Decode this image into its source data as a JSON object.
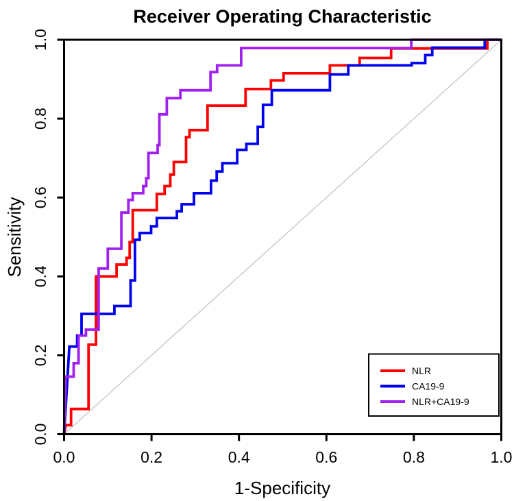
{
  "title": "Receiver Operating Characteristic",
  "axes": {
    "xlabel": "1-Specificity",
    "ylabel": "Sensitivity"
  },
  "legend": {
    "items": [
      {
        "label": "NLR",
        "color": "#FF0000"
      },
      {
        "label": "CA19-9",
        "color": "#0000EE"
      },
      {
        "label": "NLR+CA19-9",
        "color": "#A020F0"
      }
    ]
  },
  "colors": {
    "axis": "#000000",
    "reference_line": "#BFBFBF",
    "background": "#FFFFFF"
  },
  "chart_data": {
    "type": "line",
    "subtype": "roc-step-curves",
    "title": "Receiver Operating Characteristic",
    "xlabel": "1-Specificity",
    "ylabel": "Sensitivity",
    "xlim": [
      0,
      1
    ],
    "ylim": [
      0,
      1
    ],
    "grid": false,
    "x_ticks": [
      0.0,
      0.2,
      0.4,
      0.6,
      0.8,
      1.0
    ],
    "y_ticks": [
      0.0,
      0.2,
      0.4,
      0.6,
      0.8,
      1.0
    ],
    "x_tick_labels": [
      "0.0",
      "0.2",
      "0.4",
      "0.6",
      "0.8",
      "1.0"
    ],
    "y_tick_labels": [
      "0.0",
      "0.2",
      "0.4",
      "0.6",
      "0.8",
      "1.0"
    ],
    "legend_position": "bottom-right",
    "reference_line": {
      "from": [
        0,
        0
      ],
      "to": [
        1,
        1
      ],
      "color": "#BFBFBF"
    },
    "series": [
      {
        "name": "NLR",
        "color": "#FF0000",
        "points": [
          [
            0,
            0
          ],
          [
            0.004,
            0.023
          ],
          [
            0.016,
            0.023
          ],
          [
            0.016,
            0.064
          ],
          [
            0.056,
            0.064
          ],
          [
            0.056,
            0.227
          ],
          [
            0.073,
            0.227
          ],
          [
            0.073,
            0.4
          ],
          [
            0.12,
            0.4
          ],
          [
            0.12,
            0.43
          ],
          [
            0.143,
            0.43
          ],
          [
            0.143,
            0.447
          ],
          [
            0.15,
            0.447
          ],
          [
            0.15,
            0.487
          ],
          [
            0.157,
            0.487
          ],
          [
            0.157,
            0.568
          ],
          [
            0.212,
            0.568
          ],
          [
            0.212,
            0.609
          ],
          [
            0.23,
            0.609
          ],
          [
            0.23,
            0.629
          ],
          [
            0.243,
            0.629
          ],
          [
            0.243,
            0.658
          ],
          [
            0.251,
            0.658
          ],
          [
            0.251,
            0.69
          ],
          [
            0.279,
            0.69
          ],
          [
            0.279,
            0.753
          ],
          [
            0.287,
            0.753
          ],
          [
            0.287,
            0.771
          ],
          [
            0.328,
            0.771
          ],
          [
            0.328,
            0.833
          ],
          [
            0.415,
            0.833
          ],
          [
            0.415,
            0.875
          ],
          [
            0.473,
            0.875
          ],
          [
            0.473,
            0.897
          ],
          [
            0.502,
            0.897
          ],
          [
            0.502,
            0.915
          ],
          [
            0.608,
            0.915
          ],
          [
            0.608,
            0.935
          ],
          [
            0.676,
            0.935
          ],
          [
            0.676,
            0.954
          ],
          [
            0.748,
            0.954
          ],
          [
            0.748,
            0.978
          ],
          [
            0.968,
            0.978
          ],
          [
            0.968,
            1
          ],
          [
            1,
            1
          ]
        ]
      },
      {
        "name": "CA19-9",
        "color": "#0000EE",
        "points": [
          [
            0,
            0
          ],
          [
            0.012,
            0.222
          ],
          [
            0.03,
            0.222
          ],
          [
            0.03,
            0.25
          ],
          [
            0.04,
            0.25
          ],
          [
            0.04,
            0.305
          ],
          [
            0.115,
            0.305
          ],
          [
            0.115,
            0.325
          ],
          [
            0.152,
            0.325
          ],
          [
            0.152,
            0.39
          ],
          [
            0.162,
            0.39
          ],
          [
            0.162,
            0.493
          ],
          [
            0.173,
            0.493
          ],
          [
            0.173,
            0.51
          ],
          [
            0.199,
            0.51
          ],
          [
            0.199,
            0.527
          ],
          [
            0.212,
            0.527
          ],
          [
            0.212,
            0.548
          ],
          [
            0.258,
            0.548
          ],
          [
            0.258,
            0.565
          ],
          [
            0.269,
            0.565
          ],
          [
            0.269,
            0.583
          ],
          [
            0.297,
            0.583
          ],
          [
            0.297,
            0.611
          ],
          [
            0.336,
            0.611
          ],
          [
            0.336,
            0.643
          ],
          [
            0.349,
            0.643
          ],
          [
            0.349,
            0.666
          ],
          [
            0.362,
            0.666
          ],
          [
            0.362,
            0.687
          ],
          [
            0.396,
            0.687
          ],
          [
            0.396,
            0.721
          ],
          [
            0.417,
            0.721
          ],
          [
            0.417,
            0.736
          ],
          [
            0.443,
            0.736
          ],
          [
            0.443,
            0.779
          ],
          [
            0.455,
            0.779
          ],
          [
            0.455,
            0.835
          ],
          [
            0.475,
            0.835
          ],
          [
            0.475,
            0.872
          ],
          [
            0.608,
            0.872
          ],
          [
            0.608,
            0.912
          ],
          [
            0.65,
            0.912
          ],
          [
            0.65,
            0.935
          ],
          [
            0.795,
            0.935
          ],
          [
            0.795,
            0.941
          ],
          [
            0.826,
            0.941
          ],
          [
            0.826,
            0.961
          ],
          [
            0.842,
            0.961
          ],
          [
            0.842,
            0.98
          ],
          [
            0.962,
            0.98
          ],
          [
            0.962,
            1
          ],
          [
            1,
            1
          ]
        ]
      },
      {
        "name": "NLR+CA19-9",
        "color": "#A020F0",
        "points": [
          [
            0,
            0
          ],
          [
            0.004,
            0.146
          ],
          [
            0.022,
            0.146
          ],
          [
            0.022,
            0.18
          ],
          [
            0.033,
            0.18
          ],
          [
            0.033,
            0.25
          ],
          [
            0.05,
            0.25
          ],
          [
            0.05,
            0.265
          ],
          [
            0.079,
            0.265
          ],
          [
            0.079,
            0.42
          ],
          [
            0.1,
            0.42
          ],
          [
            0.1,
            0.47
          ],
          [
            0.131,
            0.47
          ],
          [
            0.131,
            0.562
          ],
          [
            0.147,
            0.562
          ],
          [
            0.147,
            0.594
          ],
          [
            0.157,
            0.594
          ],
          [
            0.157,
            0.611
          ],
          [
            0.181,
            0.611
          ],
          [
            0.181,
            0.629
          ],
          [
            0.188,
            0.629
          ],
          [
            0.188,
            0.649
          ],
          [
            0.193,
            0.649
          ],
          [
            0.193,
            0.713
          ],
          [
            0.214,
            0.713
          ],
          [
            0.214,
            0.733
          ],
          [
            0.218,
            0.733
          ],
          [
            0.218,
            0.811
          ],
          [
            0.235,
            0.811
          ],
          [
            0.235,
            0.852
          ],
          [
            0.266,
            0.852
          ],
          [
            0.266,
            0.872
          ],
          [
            0.335,
            0.872
          ],
          [
            0.335,
            0.918
          ],
          [
            0.35,
            0.918
          ],
          [
            0.35,
            0.935
          ],
          [
            0.405,
            0.935
          ],
          [
            0.405,
            0.979
          ],
          [
            0.794,
            0.979
          ],
          [
            0.794,
            1
          ],
          [
            1,
            1
          ]
        ]
      }
    ]
  }
}
